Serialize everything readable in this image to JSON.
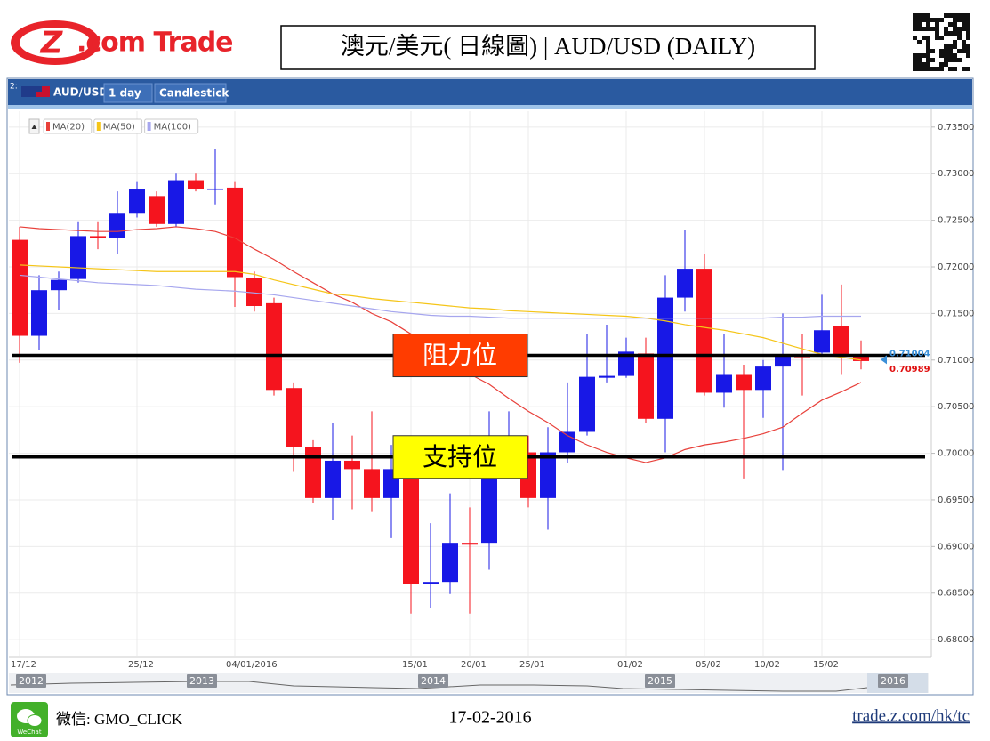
{
  "logo": {
    "mark": "Z",
    "text": ".com Trade"
  },
  "header": {
    "title": "澳元/美元( 日線圖) | AUD/USD  (DAILY)"
  },
  "chart_data": {
    "type": "candlestick",
    "panel_index": "2:",
    "symbol": "AUD/USD",
    "interval": "1 day",
    "style": "Candlestick",
    "categories": [
      "17/12",
      null,
      null,
      null,
      null,
      null,
      "25/12",
      null,
      null,
      null,
      null,
      "04/01/2016",
      null,
      null,
      null,
      null,
      null,
      null,
      null,
      null,
      "15/01",
      null,
      null,
      "20/01",
      null,
      null,
      "25/01",
      null,
      null,
      null,
      null,
      "01/02",
      null,
      null,
      null,
      "05/02",
      null,
      null,
      "10/02",
      null,
      null,
      "15/02",
      null,
      null
    ],
    "open": [
      0.7229,
      0.7126,
      0.7175,
      0.7187,
      0.7233,
      0.7231,
      0.7257,
      0.7276,
      0.7246,
      0.7293,
      0.7283,
      0.7285,
      0.7188,
      0.7161,
      0.707,
      0.7007,
      0.6952,
      0.6992,
      0.6983,
      0.6952,
      0.6983,
      0.686,
      0.6862,
      0.6904,
      0.6904,
      0.7001,
      0.7001,
      0.6952,
      0.7001,
      0.7023,
      0.7081,
      0.7083,
      0.7107,
      0.7037,
      0.7167,
      0.7198,
      0.7065,
      0.7085,
      0.7068,
      0.7093,
      0.7105,
      0.7108,
      0.7137,
      0.7105
    ],
    "high": [
      0.7243,
      0.7191,
      0.7195,
      0.7248,
      0.7248,
      0.7281,
      0.7291,
      0.7281,
      0.73,
      0.73,
      0.7326,
      0.7291,
      0.7195,
      0.7167,
      0.7076,
      0.7014,
      0.7033,
      0.7019,
      0.7045,
      0.7009,
      0.699,
      0.6925,
      0.6957,
      0.6942,
      0.7045,
      0.7045,
      0.7019,
      0.7028,
      0.7076,
      0.7128,
      0.7138,
      0.7124,
      0.7124,
      0.7191,
      0.724,
      0.7214,
      0.7128,
      0.7095,
      0.71,
      0.715,
      0.7128,
      0.717,
      0.7181,
      0.7121
    ],
    "low": [
      0.7097,
      0.7111,
      0.7154,
      0.7183,
      0.7219,
      0.7214,
      0.7253,
      0.7243,
      0.7243,
      0.7281,
      0.7267,
      0.7157,
      0.7152,
      0.7062,
      0.698,
      0.6947,
      0.6928,
      0.694,
      0.6937,
      0.6909,
      0.6828,
      0.6834,
      0.6849,
      0.6828,
      0.6875,
      0.699,
      0.6942,
      0.6918,
      0.699,
      0.7019,
      0.7076,
      0.7081,
      0.7033,
      0.7001,
      0.7152,
      0.7062,
      0.7049,
      0.6973,
      0.7038,
      0.6982,
      0.7062,
      0.7105,
      0.7085,
      0.709
    ],
    "close": [
      0.7126,
      0.7175,
      0.7186,
      0.7233,
      0.7231,
      0.7257,
      0.7283,
      0.7246,
      0.7293,
      0.7283,
      0.7284,
      0.7189,
      0.7158,
      0.7068,
      0.7007,
      0.6952,
      0.6992,
      0.6983,
      0.6952,
      0.6983,
      0.686,
      0.6862,
      0.6904,
      0.6902,
      0.7001,
      0.7009,
      0.6952,
      0.7001,
      0.7023,
      0.7082,
      0.7083,
      0.7109,
      0.7037,
      0.7167,
      0.7198,
      0.7065,
      0.7085,
      0.7068,
      0.7093,
      0.7104,
      0.7103,
      0.7132,
      0.7106,
      0.70989
    ],
    "up_color": "#1818e6",
    "down_color": "#f5141e",
    "series": [
      {
        "name": "MA(20)",
        "color": "#e8403a",
        "values": [
          0.7243,
          0.7241,
          0.724,
          0.7239,
          0.7238,
          0.7238,
          0.724,
          0.7241,
          0.7243,
          0.7241,
          0.7238,
          0.7231,
          0.7219,
          0.7208,
          0.7195,
          0.7183,
          0.7171,
          0.7162,
          0.715,
          0.7141,
          0.7128,
          0.7114,
          0.7095,
          0.7085,
          0.7074,
          0.7059,
          0.7045,
          0.7033,
          0.7019,
          0.7009,
          0.7001,
          0.6995,
          0.699,
          0.6995,
          0.7004,
          0.7009,
          0.7012,
          0.7016,
          0.7021,
          0.7028,
          0.7043,
          0.7057,
          0.7066,
          0.7076
        ]
      },
      {
        "name": "MA(50)",
        "color": "#f5c518",
        "values": [
          0.7202,
          0.7201,
          0.72,
          0.7199,
          0.7198,
          0.7197,
          0.7196,
          0.7195,
          0.7195,
          0.7195,
          0.7195,
          0.7195,
          0.7192,
          0.7186,
          0.7181,
          0.7176,
          0.7171,
          0.7169,
          0.7166,
          0.7164,
          0.7162,
          0.716,
          0.7158,
          0.7156,
          0.7155,
          0.7153,
          0.7152,
          0.7151,
          0.715,
          0.7149,
          0.7148,
          0.7147,
          0.7145,
          0.7142,
          0.7138,
          0.7135,
          0.7132,
          0.7128,
          0.7124,
          0.7118,
          0.7112,
          0.7106,
          0.7103,
          0.71
        ]
      },
      {
        "name": "MA(100)",
        "color": "#a6a6ee",
        "values": [
          0.7191,
          0.7189,
          0.7187,
          0.7185,
          0.7183,
          0.7182,
          0.7181,
          0.718,
          0.7178,
          0.7176,
          0.7175,
          0.7174,
          0.7172,
          0.717,
          0.7167,
          0.7164,
          0.7161,
          0.7158,
          0.7155,
          0.7152,
          0.715,
          0.7148,
          0.7147,
          0.7147,
          0.7146,
          0.7145,
          0.7145,
          0.7145,
          0.7145,
          0.7145,
          0.7145,
          0.7145,
          0.7145,
          0.7145,
          0.7145,
          0.7145,
          0.7145,
          0.7145,
          0.7145,
          0.7146,
          0.7146,
          0.7147,
          0.7147,
          0.7147
        ]
      }
    ],
    "levels": [
      {
        "label": "阻力位",
        "value": 0.7105,
        "color": "#ff3c00"
      },
      {
        "label": "支持位",
        "value": 0.6996,
        "color": "#ffff00"
      }
    ],
    "price_markers": [
      {
        "value": 0.71004,
        "color": "#3a8fd8"
      },
      {
        "value": 0.70989,
        "color": "#e01010"
      }
    ],
    "ylim": [
      0.6782,
      0.7367
    ],
    "yticks": [
      {
        "value": 0.68,
        "label": "0.68000"
      },
      {
        "value": 0.685,
        "label": "0.68500"
      },
      {
        "value": 0.69,
        "label": "0.69000"
      },
      {
        "value": 0.695,
        "label": "0.69500"
      },
      {
        "value": 0.7,
        "label": "0.70000"
      },
      {
        "value": 0.705,
        "label": "0.70500"
      },
      {
        "value": 0.71,
        "label": "0.71000"
      },
      {
        "value": 0.715,
        "label": "0.71500"
      },
      {
        "value": 0.72,
        "label": "0.72000"
      },
      {
        "value": 0.725,
        "label": "0.72500"
      },
      {
        "value": 0.73,
        "label": "0.73000"
      },
      {
        "value": 0.735,
        "label": "0.73500"
      }
    ],
    "grid": true,
    "navigator": {
      "labels": [
        "2012",
        "2013",
        "2014",
        "2015",
        "2016"
      ]
    }
  },
  "footer": {
    "wechat_icon": "WeChat",
    "wechat": "微信: GMO_CLICK",
    "date": "17-02-2016",
    "url": "trade.z.com/hk/tc"
  }
}
